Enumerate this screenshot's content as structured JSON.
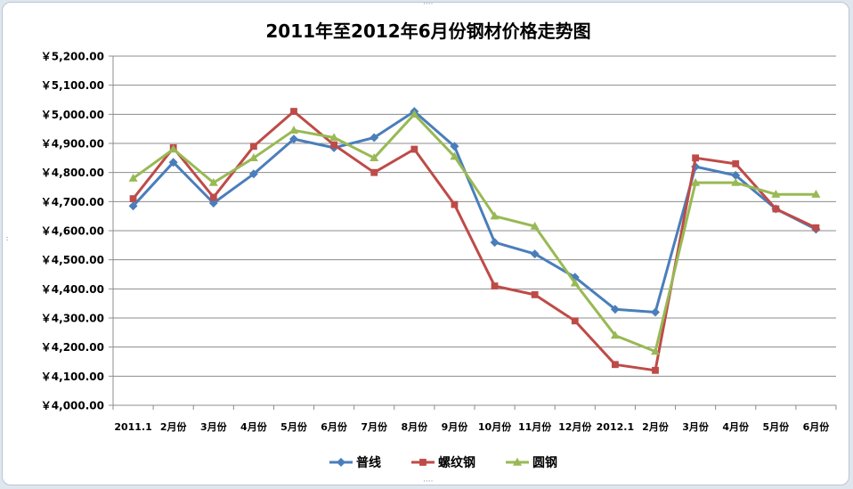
{
  "chart_data": {
    "type": "line",
    "title": "2011年至2012年6月份钢材价格走势图",
    "xlabel": "",
    "ylabel": "",
    "categories": [
      "2011.1",
      "2月份",
      "3月份",
      "4月份",
      "5月份",
      "6月份",
      "7月份",
      "8月份",
      "9月份",
      "10月份",
      "11月份",
      "12月份",
      "2012.1",
      "2月份",
      "3月份",
      "4月份",
      "5月份",
      "6月份"
    ],
    "ylim": [
      4000,
      5200
    ],
    "ytick_step": 100,
    "yticks": [
      "￥4,000.00",
      "￥4,100.00",
      "￥4,200.00",
      "￥4,300.00",
      "￥4,400.00",
      "￥4,500.00",
      "￥4,600.00",
      "￥4,700.00",
      "￥4,800.00",
      "￥4,900.00",
      "￥5,000.00",
      "￥5,100.00",
      "￥5,200.00"
    ],
    "grid": true,
    "legend_position": "bottom",
    "series": [
      {
        "name": "普线",
        "color": "#4a7ebb",
        "marker": "diamond",
        "values": [
          4685,
          4835,
          4695,
          4795,
          4915,
          4885,
          4920,
          5010,
          4890,
          4560,
          4520,
          4440,
          4330,
          4320,
          4820,
          4790,
          4675,
          4605
        ]
      },
      {
        "name": "螺纹钢",
        "color": "#be4b48",
        "marker": "square",
        "values": [
          4710,
          4885,
          4715,
          4890,
          5010,
          4895,
          4800,
          4880,
          4690,
          4410,
          4380,
          4290,
          4140,
          4120,
          4850,
          4830,
          4675,
          4610
        ]
      },
      {
        "name": "圆钢",
        "color": "#98b954",
        "marker": "triangle",
        "values": [
          4780,
          4880,
          4765,
          4850,
          4945,
          4920,
          4850,
          5000,
          4855,
          4650,
          4615,
          4420,
          4240,
          4185,
          4765,
          4765,
          4725,
          4725
        ]
      }
    ]
  }
}
